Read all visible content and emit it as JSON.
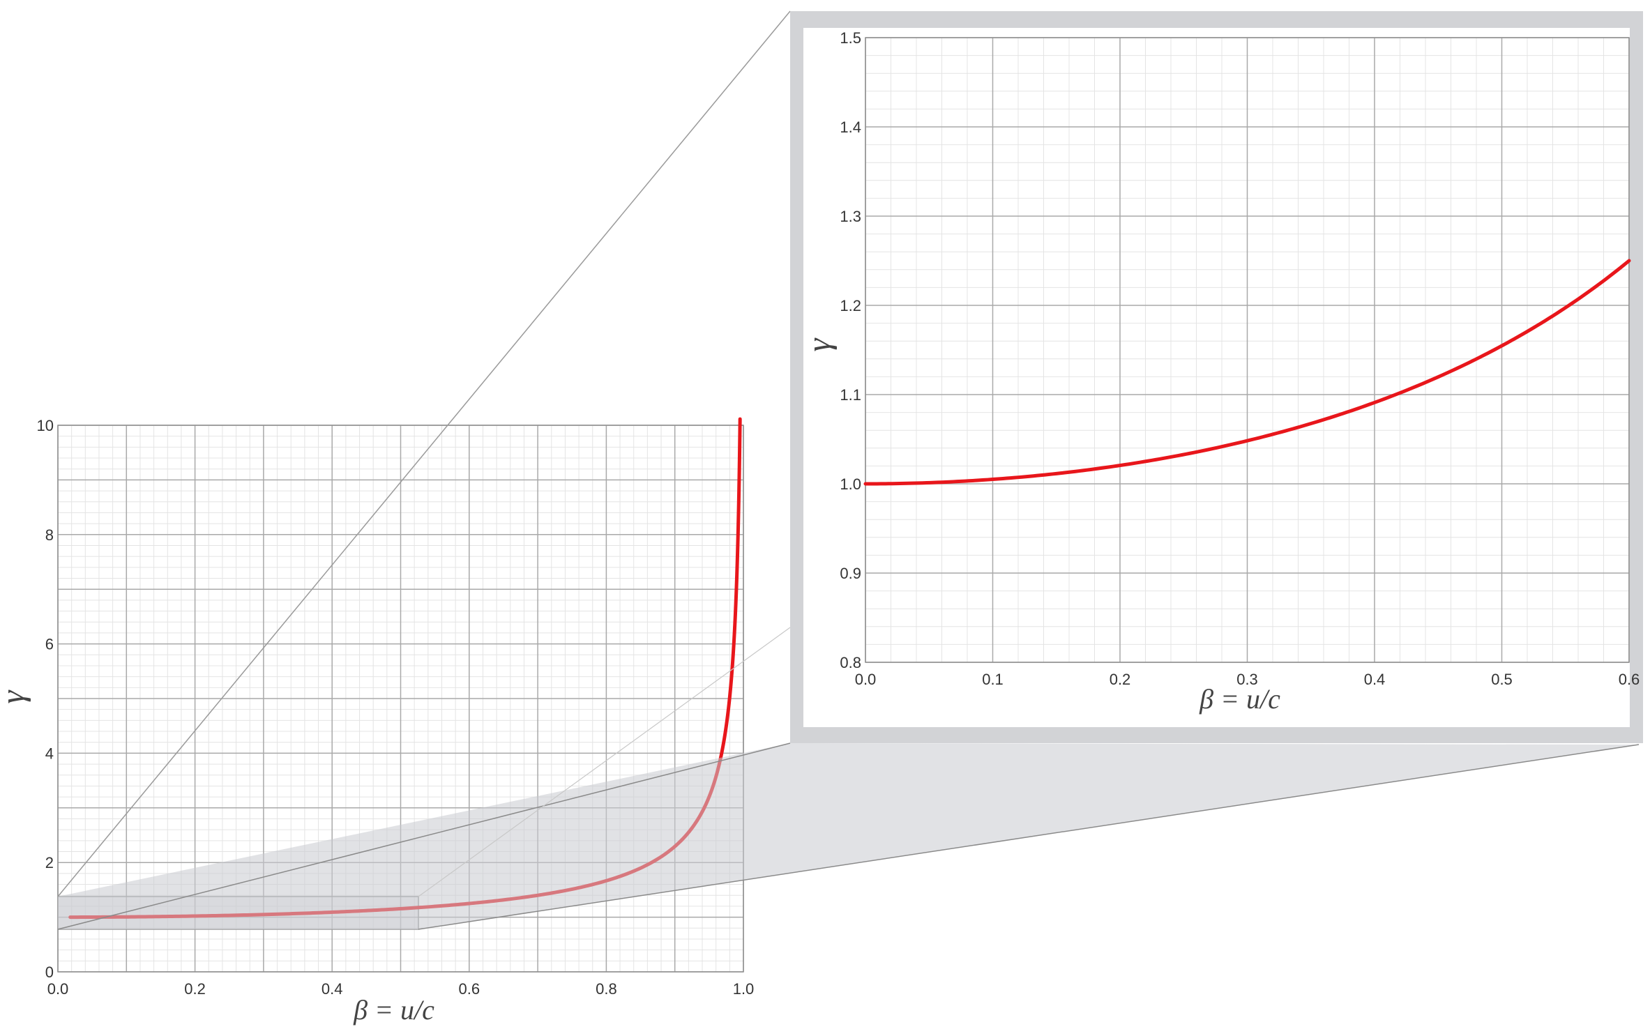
{
  "chart_data": [
    {
      "type": "line",
      "xlabel": "β = u/c",
      "ylabel": "γ",
      "xlim": [
        0.0,
        1.0
      ],
      "ylim": [
        0,
        10
      ],
      "xticks": [
        "0.0",
        "0.2",
        "0.4",
        "0.6",
        "0.8",
        "1.0"
      ],
      "yticks": [
        "0",
        "2",
        "4",
        "6",
        "8",
        "10"
      ],
      "grid": true,
      "series": [
        {
          "color": "#e8161b",
          "x": [
            0.0,
            0.1,
            0.2,
            0.3,
            0.4,
            0.5,
            0.6,
            0.7,
            0.8,
            0.9,
            0.95,
            0.97,
            0.98,
            0.99,
            0.995
          ],
          "y": [
            1.0,
            1.005,
            1.021,
            1.048,
            1.091,
            1.155,
            1.25,
            1.4,
            1.667,
            2.294,
            3.203,
            4.113,
            5.025,
            7.089,
            10.01
          ]
        }
      ]
    },
    {
      "type": "line",
      "xlabel": "β = u/c",
      "ylabel": "γ",
      "xlim": [
        0.0,
        0.6
      ],
      "ylim": [
        0.8,
        1.5
      ],
      "xticks": [
        "0.0",
        "0.1",
        "0.2",
        "0.3",
        "0.4",
        "0.5",
        "0.6"
      ],
      "yticks": [
        "0.8",
        "0.9",
        "1.0",
        "1.1",
        "1.2",
        "1.3",
        "1.4",
        "1.5"
      ],
      "grid": true,
      "series": [
        {
          "color": "#e8161b",
          "x": [
            0.0,
            0.1,
            0.2,
            0.3,
            0.4,
            0.5,
            0.6
          ],
          "y": [
            1.0,
            1.005,
            1.021,
            1.048,
            1.091,
            1.155,
            1.25
          ]
        }
      ]
    }
  ],
  "colors": {
    "curve": "#e8161b",
    "inset_frame": "#d2d3d6",
    "zoom_region": "#d7d8db"
  }
}
